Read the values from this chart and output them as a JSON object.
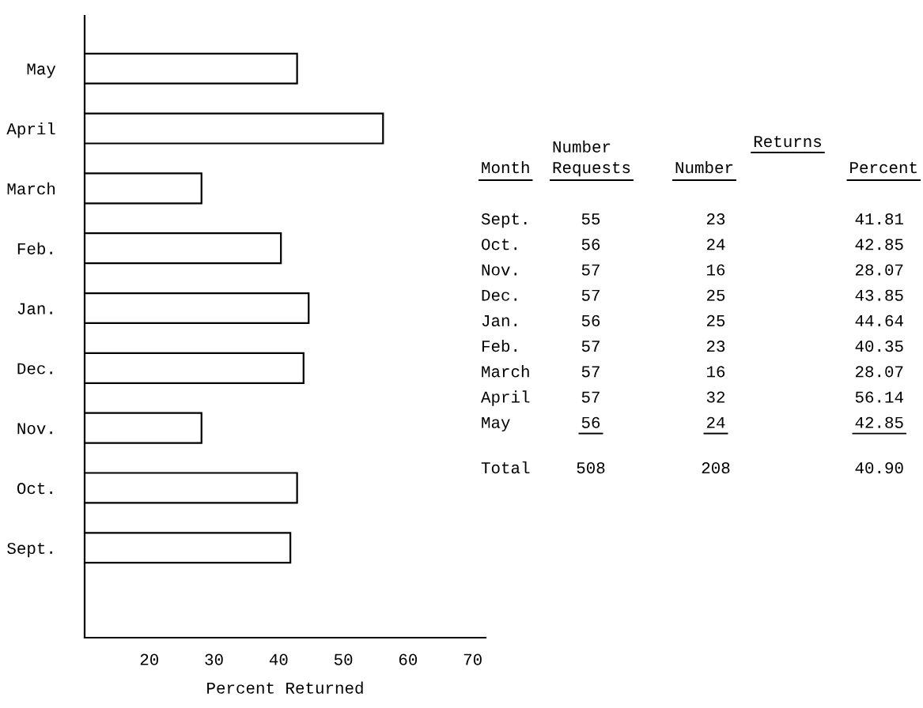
{
  "chart_data": [
    {
      "type": "bar",
      "orientation": "horizontal",
      "xlabel": "Percent Returned",
      "categories": [
        "May",
        "April",
        "March",
        "Feb.",
        "Jan.",
        "Dec.",
        "Nov.",
        "Oct.",
        "Sept."
      ],
      "values": [
        42.85,
        56.14,
        28.07,
        40.35,
        44.64,
        43.85,
        28.07,
        42.85,
        41.81
      ],
      "color": "#ffffff",
      "xlim": [
        10,
        72
      ],
      "xticks": [
        20,
        30,
        40,
        50,
        60,
        70
      ]
    },
    {
      "type": "other",
      "ylabel": "Month",
      "annotations": [
        "Returns"
      ],
      "data_labels": true,
      "categories": [
        "Sept.",
        "Oct.",
        "Nov.",
        "Dec.",
        "Jan.",
        "Feb.",
        "March",
        "April",
        "May",
        "Total"
      ],
      "series": [
        {
          "name": "Number\nRequests",
          "values": [
            55,
            56,
            57,
            57,
            56,
            57,
            57,
            57,
            56,
            508
          ]
        },
        {
          "name": "Number",
          "values": [
            23,
            24,
            16,
            25,
            25,
            23,
            16,
            32,
            24,
            208
          ]
        },
        {
          "name": "Percent",
          "values": [
            41.81,
            42.85,
            28.07,
            43.85,
            44.64,
            40.35,
            28.07,
            56.14,
            42.85,
            40.9
          ],
          "value_labels": [
            "41.81",
            "42.85",
            "28.07",
            "43.85",
            "44.64",
            "40.35",
            "28.07",
            "56.14",
            "42.85",
            "40.90"
          ]
        }
      ]
    }
  ]
}
